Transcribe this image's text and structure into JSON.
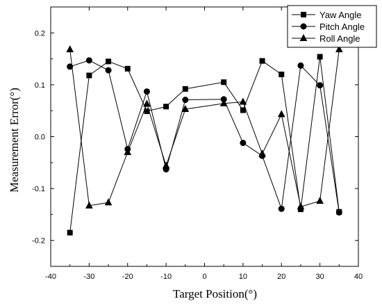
{
  "chart_data": {
    "type": "line",
    "title": "",
    "xlabel": "Target Position(°)",
    "ylabel": "Measurement Error(°)",
    "xlim": [
      -40,
      40
    ],
    "ylim": [
      -0.25,
      0.25
    ],
    "x_ticks": [
      -40,
      -30,
      -20,
      -10,
      0,
      10,
      20,
      30,
      40
    ],
    "x_tick_labels": [
      "-40",
      "-30",
      "-20",
      "-10",
      "0",
      "10",
      "20",
      "30",
      "40"
    ],
    "y_ticks": [
      -0.2,
      -0.1,
      0.0,
      0.1,
      0.2
    ],
    "y_tick_labels": [
      "-0.2",
      "-0.1",
      "0.0",
      "0.1",
      "0.2"
    ],
    "grid": false,
    "legend_position": "top-right",
    "x": [
      -35,
      -30,
      -25,
      -20,
      -15,
      -10,
      -5,
      5,
      10,
      15,
      20,
      25,
      30,
      35
    ],
    "series": [
      {
        "name": "Yaw Angle",
        "marker": "square",
        "values": [
          -0.185,
          0.118,
          0.145,
          0.131,
          0.049,
          0.058,
          0.092,
          0.105,
          0.051,
          0.146,
          0.12,
          -0.14,
          0.154,
          -0.145
        ]
      },
      {
        "name": "Pitch Angle",
        "marker": "circle",
        "values": [
          0.135,
          0.147,
          0.128,
          -0.024,
          0.087,
          -0.063,
          0.071,
          0.072,
          -0.012,
          -0.037,
          -0.139,
          0.137,
          0.099,
          -0.146
        ]
      },
      {
        "name": "Roll Angle",
        "marker": "triangle",
        "values": [
          0.168,
          -0.133,
          -0.127,
          -0.03,
          0.063,
          -0.056,
          0.053,
          0.064,
          0.067,
          -0.033,
          0.043,
          -0.135,
          -0.124,
          0.168
        ]
      }
    ],
    "colors": {
      "line": "#000000",
      "marker": "#000000",
      "background": "#ffffff"
    }
  }
}
